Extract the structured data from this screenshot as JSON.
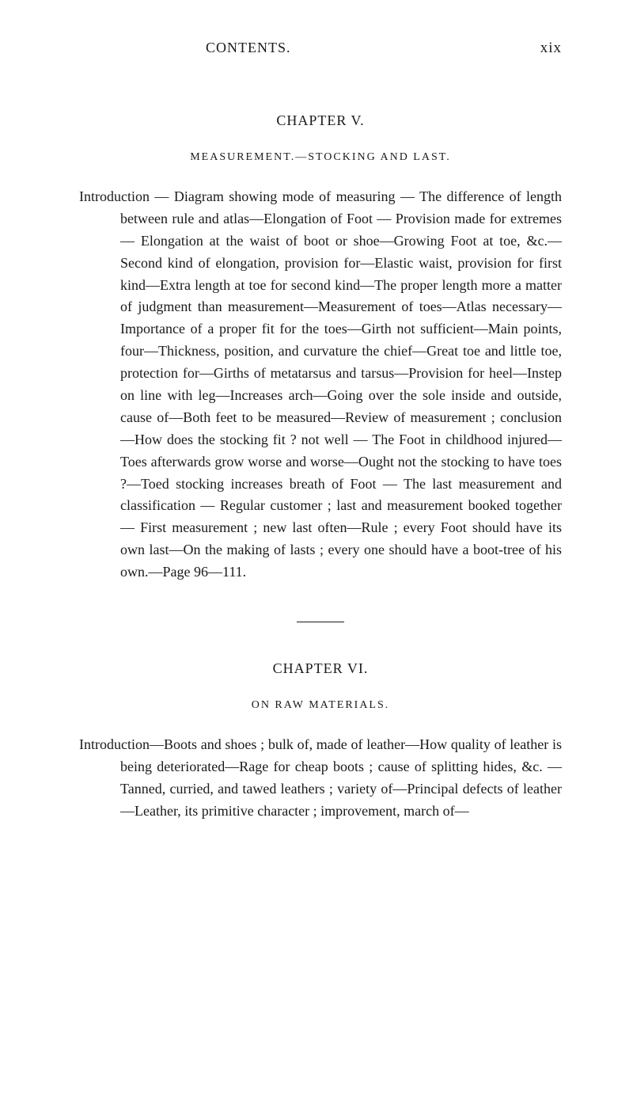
{
  "header": {
    "title": "CONTENTS.",
    "page_number": "xix"
  },
  "chapter5": {
    "heading": "CHAPTER V.",
    "subheading": "MEASUREMENT.—STOCKING AND LAST.",
    "body": "Introduction — Diagram showing mode of measuring — The difference of length between rule and atlas—Elongation of Foot — Provision made for extremes — Elongation at the waist of boot or shoe—Growing Foot at toe, &c.—Second kind of elongation, provision for—Elastic waist, provision for first kind—Extra length at toe for second kind—The proper length more a matter of judgment than measurement—Measurement of toes—Atlas necessary—Importance of a proper fit for the toes—Girth not sufficient—Main points, four—Thickness, position, and curvature the chief—Great toe and little toe, protection for—Girths of metatarsus and tarsus—Provision for heel—Instep on line with leg—Increases arch—Going over the sole inside and outside, cause of—Both feet to be measured—Review of measurement ; conclusion—How does the stocking fit ? not well — The Foot in childhood injured—Toes afterwards grow worse and worse—Ought not the stocking to have toes ?—Toed stocking increases breath of Foot — The last measurement and classification — Regular customer ; last and measurement booked together — First measurement ; new last often—Rule ; every Foot should have its own last—On the making of lasts ; every one should have a boot-tree of his own.—Page 96—111."
  },
  "chapter6": {
    "heading": "CHAPTER VI.",
    "subheading": "ON RAW MATERIALS.",
    "body": "Introduction—Boots and shoes ; bulk of, made of leather—How quality of leather is being deteriorated—Rage for cheap boots ; cause of splitting hides, &c. — Tanned, curried, and tawed leathers ; variety of—Principal defects of leather—Leather, its primitive character ; improvement, march of—"
  },
  "typography": {
    "body_font_size": 18,
    "heading_font_size": 18,
    "subheading_font_size": 14,
    "line_height": 1.55,
    "text_color": "#1a1a1a",
    "background_color": "#ffffff"
  }
}
